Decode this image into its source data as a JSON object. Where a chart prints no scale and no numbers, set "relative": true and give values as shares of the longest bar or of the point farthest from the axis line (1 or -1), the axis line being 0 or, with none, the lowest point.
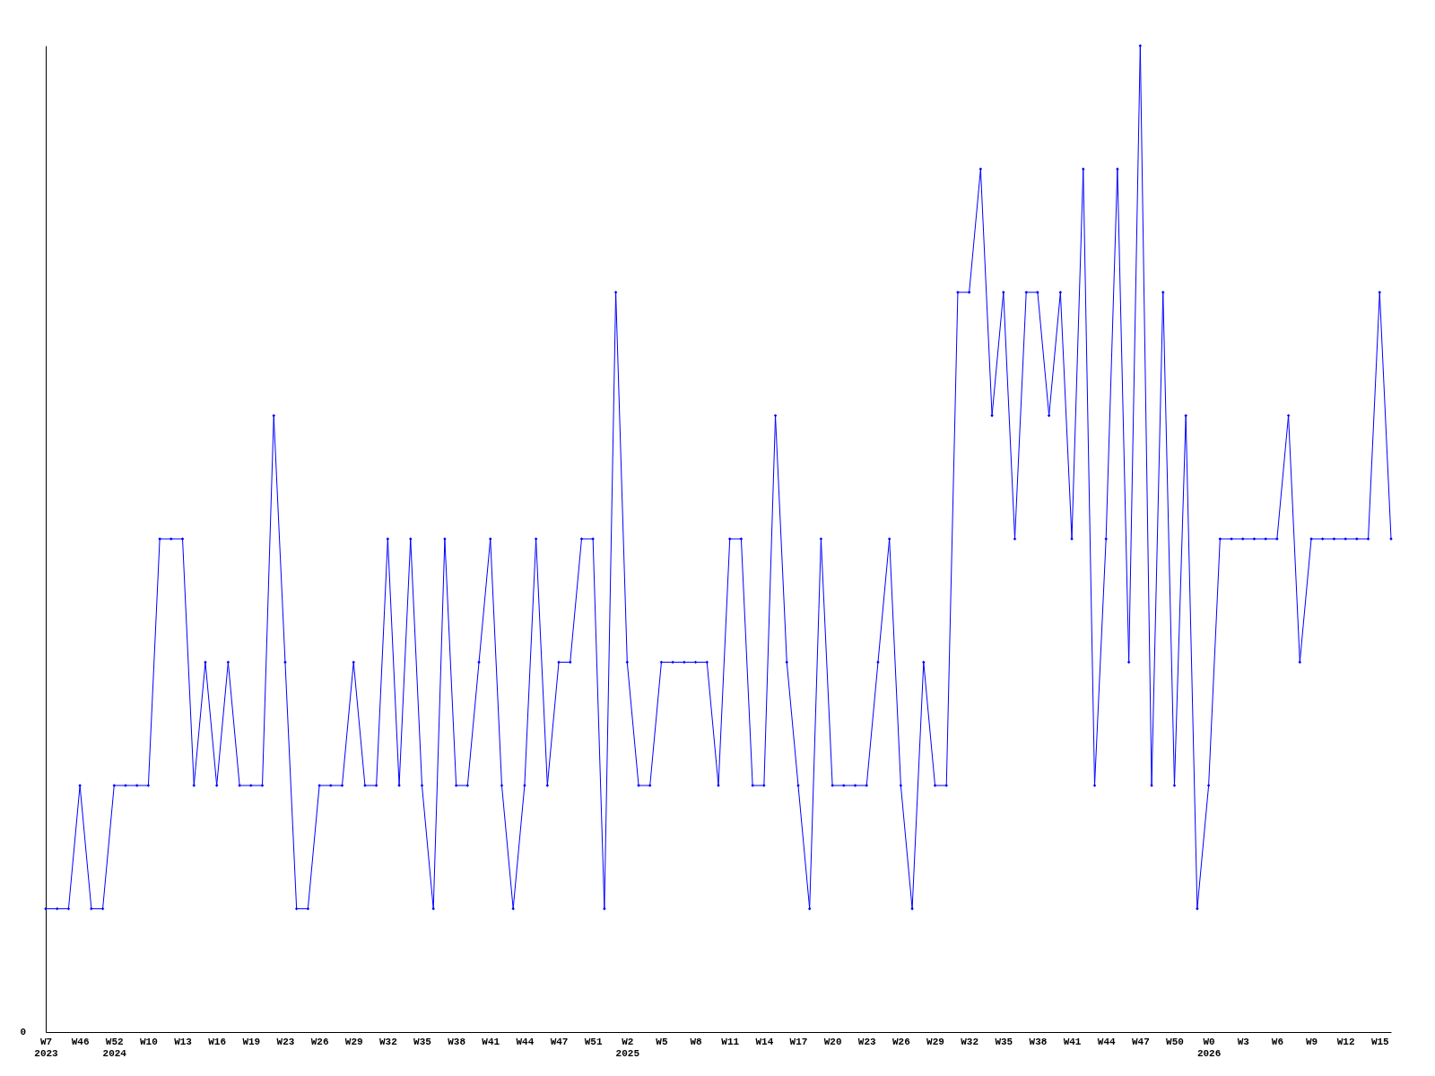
{
  "chart_data": {
    "type": "line",
    "relative": true,
    "marker": "diamond",
    "grid": false,
    "categories": [
      "W7\n2023",
      null,
      null,
      "W46",
      null,
      null,
      "W52\n2024",
      null,
      null,
      "W10",
      null,
      null,
      "W13",
      null,
      null,
      "W16",
      null,
      null,
      "W19",
      null,
      null,
      "W23",
      null,
      null,
      "W26",
      null,
      null,
      "W29",
      null,
      null,
      "W32",
      null,
      null,
      "W35",
      null,
      null,
      "W38",
      null,
      null,
      "W41",
      null,
      null,
      "W44",
      null,
      null,
      "W47",
      null,
      null,
      "W51",
      null,
      null,
      "W2\n2025",
      null,
      null,
      "W5",
      null,
      null,
      "W8",
      null,
      null,
      "W11",
      null,
      null,
      "W14",
      null,
      null,
      "W17",
      null,
      null,
      "W20",
      null,
      null,
      "W23",
      null,
      null,
      "W26",
      null,
      null,
      "W29",
      null,
      null,
      "W32",
      null,
      null,
      "W35",
      null,
      null,
      "W38",
      null,
      null,
      "W41",
      null,
      null,
      "W44",
      null,
      null,
      "W47",
      null,
      null,
      "W50",
      null,
      null,
      "W0\n2026",
      null,
      null,
      "W3",
      null,
      null,
      "W6",
      null,
      null,
      "W9",
      null,
      null,
      "W12",
      null,
      null,
      "W15",
      null
    ],
    "series": [
      {
        "color": "#0000ff",
        "values": [
          0.125,
          0.125,
          0.125,
          0.25,
          0.125,
          0.125,
          0.25,
          0.25,
          0.25,
          0.25,
          0.5,
          0.5,
          0.5,
          0.25,
          0.375,
          0.25,
          0.375,
          0.25,
          0.25,
          0.25,
          0.625,
          0.375,
          0.125,
          0.125,
          0.25,
          0.25,
          0.25,
          0.375,
          0.25,
          0.25,
          0.5,
          0.25,
          0.5,
          0.25,
          0.125,
          0.5,
          0.25,
          0.25,
          0.375,
          0.5,
          0.25,
          0.125,
          0.25,
          0.5,
          0.25,
          0.375,
          0.375,
          0.5,
          0.5,
          0.125,
          0.75,
          0.375,
          0.25,
          0.25,
          0.375,
          0.375,
          0.375,
          0.375,
          0.375,
          0.25,
          0.5,
          0.5,
          0.25,
          0.25,
          0.625,
          0.375,
          0.25,
          0.125,
          0.5,
          0.25,
          0.25,
          0.25,
          0.25,
          0.375,
          0.5,
          0.25,
          0.125,
          0.375,
          0.25,
          0.25,
          0.75,
          0.75,
          0.875,
          0.625,
          0.75,
          0.5,
          0.75,
          0.75,
          0.625,
          0.75,
          0.5,
          0.875,
          0.25,
          0.5,
          0.875,
          0.375,
          1,
          0.25,
          0.75,
          0.25,
          0.625,
          0.125,
          0.25,
          0.5,
          0.5,
          0.5,
          0.5,
          0.5,
          0.5,
          0.625,
          0.375,
          0.5,
          0.5,
          0.5,
          0.5,
          0.5,
          0.5,
          0.75,
          0.5
        ]
      }
    ],
    "annotations": [
      "0"
    ]
  }
}
